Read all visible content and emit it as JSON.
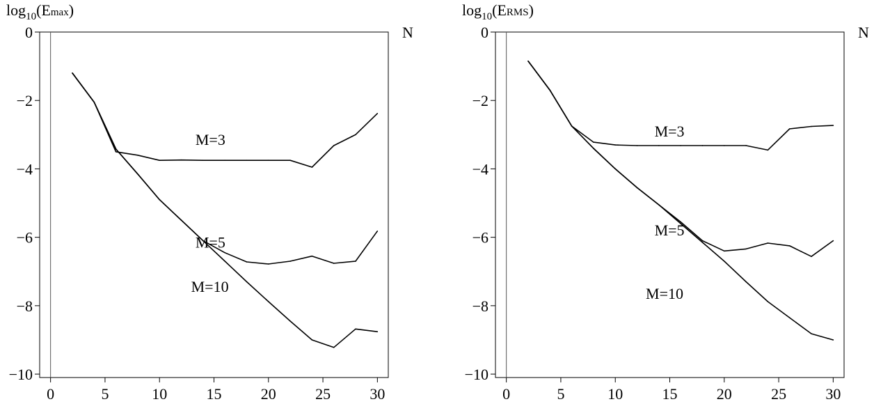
{
  "chart_data": [
    {
      "type": "line",
      "ylabel": {
        "base": "log",
        "sub": "10",
        "open": "(E",
        "small": "max",
        "close": ")"
      },
      "xlabel": "N",
      "xlim": [
        -1,
        31
      ],
      "ylim": [
        -10.1,
        0
      ],
      "xticks": [
        0,
        5,
        10,
        15,
        20,
        25,
        30
      ],
      "yticks": [
        0,
        -2,
        -4,
        -6,
        -8,
        -10
      ],
      "ytick_labels": [
        "0",
        "−2",
        "−4",
        "−6",
        "−8",
        "−10"
      ],
      "grid": false,
      "x": [
        2,
        4,
        6,
        8,
        10,
        12,
        14,
        16,
        18,
        20,
        22,
        24,
        26,
        28,
        30
      ],
      "series": [
        {
          "name": "M=3",
          "label_at": [
            13.3,
            -3.3
          ],
          "values": [
            -1.2,
            -2.05,
            -3.5,
            -3.6,
            -3.75,
            -3.74,
            -3.75,
            -3.75,
            -3.75,
            -3.75,
            -3.75,
            -3.95,
            -3.32,
            -3.0,
            -2.38
          ]
        },
        {
          "name": "M=5",
          "label_at": [
            13.3,
            -6.3
          ],
          "values": [
            -1.2,
            -2.05,
            -3.42,
            -4.15,
            -4.9,
            -5.5,
            -6.1,
            -6.45,
            -6.72,
            -6.78,
            -6.7,
            -6.55,
            -6.76,
            -6.7,
            -5.82
          ]
        },
        {
          "name": "M=10",
          "label_at": [
            12.9,
            -7.6
          ],
          "values": [
            -1.2,
            -2.05,
            -3.42,
            -4.15,
            -4.9,
            -5.5,
            -6.1,
            -6.7,
            -7.3,
            -7.88,
            -8.45,
            -9.0,
            -9.22,
            -8.68,
            -8.76
          ]
        }
      ]
    },
    {
      "type": "line",
      "ylabel": {
        "base": "log",
        "sub": "10",
        "open": "(E",
        "small": "RMS",
        "close": ")"
      },
      "xlabel": "N",
      "xlim": [
        -1,
        31
      ],
      "ylim": [
        -10.1,
        0
      ],
      "xticks": [
        0,
        5,
        10,
        15,
        20,
        25,
        30
      ],
      "yticks": [
        0,
        -2,
        -4,
        -6,
        -8,
        -10
      ],
      "ytick_labels": [
        "0",
        "−2",
        "−4",
        "−6",
        "−8",
        "−10"
      ],
      "grid": false,
      "x": [
        2,
        4,
        6,
        8,
        10,
        12,
        14,
        16,
        18,
        20,
        22,
        24,
        26,
        28,
        30
      ],
      "series": [
        {
          "name": "M=3",
          "label_at": [
            13.6,
            -3.05
          ],
          "values": [
            -0.85,
            -1.7,
            -2.75,
            -3.22,
            -3.3,
            -3.32,
            -3.32,
            -3.32,
            -3.32,
            -3.32,
            -3.32,
            -3.45,
            -2.83,
            -2.76,
            -2.73
          ]
        },
        {
          "name": "M=5",
          "label_at": [
            13.6,
            -5.95
          ],
          "values": [
            -0.85,
            -1.7,
            -2.75,
            -3.4,
            -4.0,
            -4.55,
            -5.05,
            -5.55,
            -6.1,
            -6.4,
            -6.34,
            -6.17,
            -6.25,
            -6.56,
            -6.1
          ]
        },
        {
          "name": "M=10",
          "label_at": [
            12.8,
            -7.8
          ],
          "values": [
            -0.85,
            -1.7,
            -2.75,
            -3.4,
            -4.0,
            -4.55,
            -5.05,
            -5.6,
            -6.15,
            -6.7,
            -7.3,
            -7.88,
            -8.35,
            -8.82,
            -9.0
          ]
        }
      ]
    }
  ]
}
